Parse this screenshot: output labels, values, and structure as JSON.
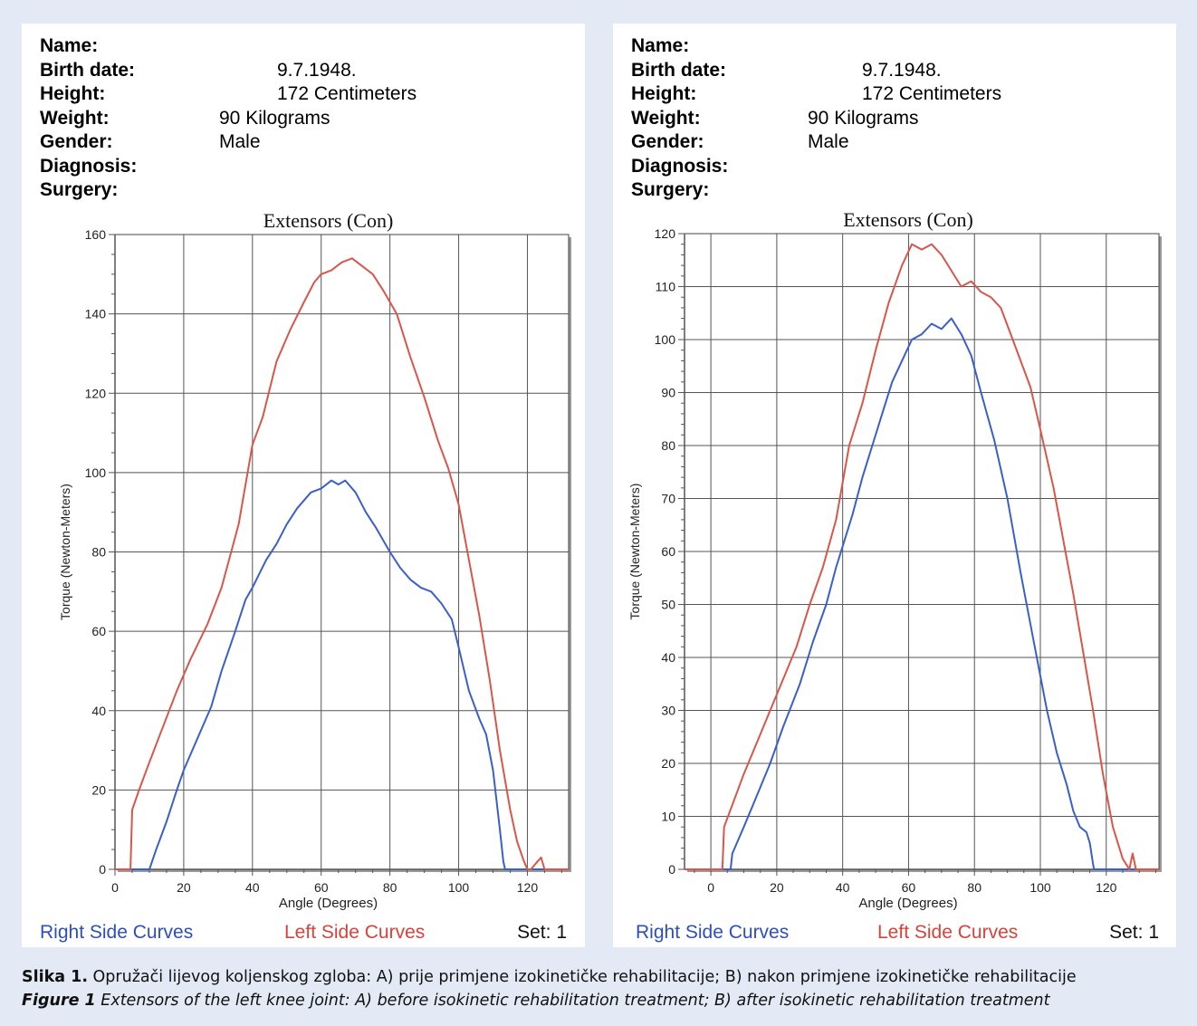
{
  "patient_labels": {
    "name": "Name:",
    "birth": "Birth date:",
    "height": "Height:",
    "weight": "Weight:",
    "gender": "Gender:",
    "diagnosis": "Diagnosis:",
    "surgery": "Surgery:"
  },
  "patient_values": {
    "birth": "9.7.1948.",
    "height": "172 Centimeters",
    "weight": "90 Kilograms",
    "gender": "Male"
  },
  "legend": {
    "right": "Right Side Curves",
    "left": "Left Side Curves",
    "set": "Set: 1"
  },
  "colors": {
    "right": "#3a5fc8",
    "left": "#d8564a",
    "grid": "#555555",
    "legend_right": "#2f4fb8",
    "legend_left": "#d8423a"
  },
  "caption": {
    "label_hr": "Slika 1.",
    "text_hr": " Opružači lijevog koljenskog zgloba: A) prije primjene izokinetičke rehabilitacije; B) nakon primjene izokinetičke rehabilitacije",
    "label_en": "Figure 1",
    "text_en": " Extensors of the left knee joint: A) before isokinetic rehabilitation treatment; B) after isokinetic rehabilitation treatment"
  },
  "chart_data": [
    {
      "type": "line",
      "title": "Extensors (Con)",
      "xlabel": "Angle (Degrees)",
      "ylabel": "Torque (Newton-Meters)",
      "xlim": [
        0,
        132
      ],
      "ylim": [
        0,
        160
      ],
      "xticks": [
        0,
        20,
        40,
        60,
        80,
        100,
        120
      ],
      "yticks": [
        0,
        20,
        40,
        60,
        80,
        100,
        120,
        140,
        160
      ],
      "grid": true,
      "legend": "bottom",
      "series": [
        {
          "name": "Right Side Curves",
          "color": "right",
          "x": [
            0,
            10,
            12,
            15,
            18,
            20,
            24,
            28,
            31,
            35,
            38,
            40,
            44,
            47,
            50,
            53,
            57,
            60,
            63,
            65,
            67,
            70,
            73,
            76,
            80,
            83,
            86,
            89,
            92,
            95,
            98,
            100,
            103,
            106,
            108,
            110,
            112,
            113,
            113.5,
            132
          ],
          "y": [
            0,
            0,
            5,
            12,
            20,
            25,
            33,
            41,
            50,
            60,
            68,
            71,
            78,
            82,
            87,
            91,
            95,
            96,
            98,
            97,
            98,
            95,
            90,
            86,
            80,
            76,
            73,
            71,
            70,
            67,
            63,
            56,
            45,
            38,
            34,
            25,
            10,
            2,
            0,
            0
          ]
        },
        {
          "name": "Left Side Curves",
          "color": "left",
          "x": [
            0,
            4.5,
            5,
            7,
            10,
            14,
            18,
            22,
            27,
            31,
            36,
            40,
            43,
            47,
            51,
            55,
            58,
            60,
            63,
            66,
            69,
            72,
            75,
            78,
            82,
            86,
            90,
            94,
            97,
            100,
            103,
            106,
            109,
            112,
            115,
            117,
            119,
            120,
            121,
            123,
            124,
            125,
            132
          ],
          "y": [
            0,
            0,
            15,
            20,
            27,
            36,
            45,
            53,
            62,
            71,
            87,
            107,
            114,
            128,
            136,
            143,
            148,
            150,
            151,
            153,
            154,
            152,
            150,
            146,
            140,
            129,
            119,
            108,
            101,
            92,
            78,
            64,
            48,
            30,
            15,
            7,
            2,
            0,
            0,
            2,
            3,
            0,
            0
          ]
        }
      ]
    },
    {
      "type": "line",
      "title": "Extensors (Con)",
      "xlabel": "Angle (Degrees)",
      "ylabel": "Torque (Newton-Meters)",
      "xlim": [
        -8,
        136
      ],
      "ylim": [
        0,
        120
      ],
      "xticks": [
        0,
        20,
        40,
        60,
        80,
        100,
        120
      ],
      "yticks": [
        0,
        10,
        20,
        30,
        40,
        50,
        60,
        70,
        80,
        90,
        100,
        110,
        120
      ],
      "grid": true,
      "legend": "bottom",
      "series": [
        {
          "name": "Right Side Curves",
          "color": "right",
          "x": [
            -8,
            6,
            6.5,
            10,
            14,
            18,
            22,
            27,
            31,
            35,
            38,
            40,
            43,
            46,
            49,
            52,
            55,
            58,
            61,
            64,
            67,
            70,
            73,
            76,
            79,
            82,
            86,
            90,
            94,
            98,
            102,
            105,
            108,
            110,
            112,
            114,
            115,
            116,
            116.3,
            136
          ],
          "y": [
            0,
            0,
            3,
            8,
            14,
            20,
            27,
            35,
            43,
            50,
            57,
            61,
            67,
            74,
            80,
            86,
            92,
            96,
            100,
            101,
            103,
            102,
            104,
            101,
            97,
            90,
            81,
            70,
            56,
            43,
            30,
            22,
            16,
            11,
            8,
            7,
            5,
            1,
            0,
            0
          ]
        },
        {
          "name": "Left Side Curves",
          "color": "left",
          "x": [
            -8,
            3.5,
            4,
            7,
            10,
            14,
            18,
            22,
            26,
            30,
            34,
            38,
            42,
            46,
            50,
            54,
            58,
            61,
            64,
            67,
            70,
            73,
            76,
            79,
            82,
            85,
            88,
            91,
            94,
            97,
            100,
            104,
            107,
            110,
            113,
            116,
            119,
            122,
            125,
            127,
            128,
            129,
            136
          ],
          "y": [
            0,
            0,
            8,
            13,
            18,
            24,
            30,
            36,
            42,
            50,
            57,
            66,
            80,
            88,
            98,
            107,
            114,
            118,
            117,
            118,
            116,
            113,
            110,
            111,
            109,
            108,
            106,
            101,
            96,
            91,
            83,
            72,
            62,
            52,
            41,
            30,
            18,
            8,
            2,
            0,
            3,
            0,
            0
          ]
        }
      ]
    }
  ]
}
